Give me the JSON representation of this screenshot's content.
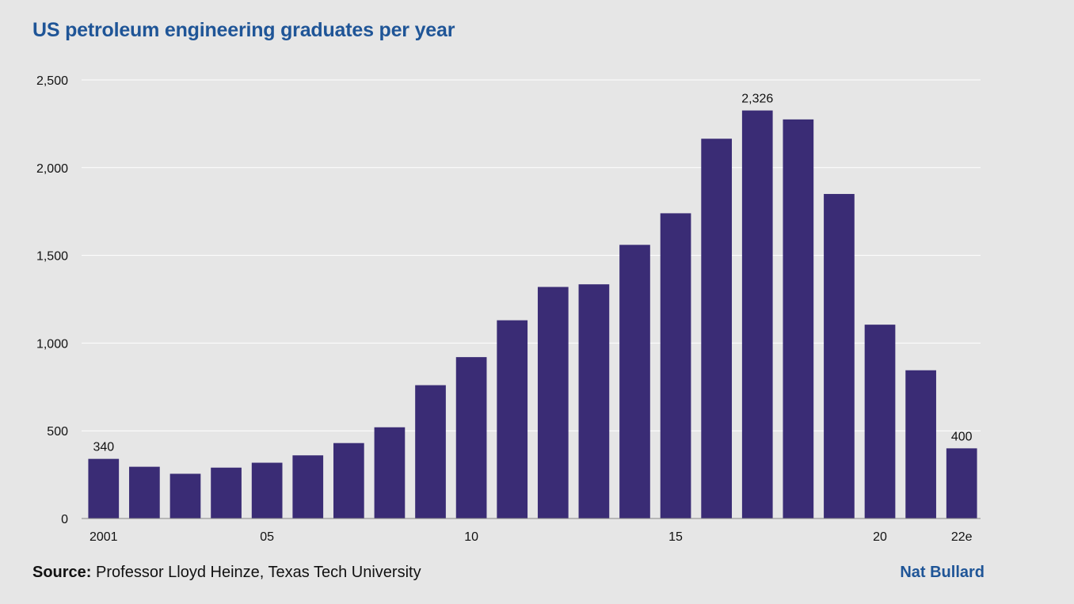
{
  "title": "US petroleum engineering graduates per year",
  "source_label": "Source:",
  "source_text": " Professor Lloyd Heinze, Texas Tech University",
  "author": "Nat Bullard",
  "colors": {
    "bar": "#3a2c75",
    "title": "#1f5597",
    "grid": "#ffffff",
    "axis": "#888888",
    "background": "#e6e6e6"
  },
  "chart_data": {
    "type": "bar",
    "title": "US petroleum engineering graduates per year",
    "xlabel": "",
    "ylabel": "",
    "ylim": [
      0,
      2500
    ],
    "yticks": [
      0,
      500,
      1000,
      1500,
      2000,
      2500
    ],
    "ytick_labels": [
      "0",
      "500",
      "1,000",
      "1,500",
      "2,000",
      "2,500"
    ],
    "categories": [
      "2001",
      "2002",
      "2003",
      "2004",
      "2005",
      "2006",
      "2007",
      "2008",
      "2009",
      "2010",
      "2011",
      "2012",
      "2013",
      "2014",
      "2015",
      "2016",
      "2017",
      "2018",
      "2019",
      "2020",
      "2021",
      "2022e"
    ],
    "xtick_labels": [
      "2001",
      "",
      "",
      "",
      "05",
      "",
      "",
      "",
      "",
      "10",
      "",
      "",
      "",
      "",
      "15",
      "",
      "",
      "",
      "",
      "20",
      "",
      "22e"
    ],
    "values": [
      340,
      295,
      255,
      290,
      318,
      360,
      430,
      520,
      760,
      920,
      1130,
      1320,
      1335,
      1560,
      1740,
      2165,
      2326,
      2275,
      1850,
      1105,
      845,
      400
    ],
    "data_labels": [
      "340",
      "",
      "",
      "",
      "",
      "",
      "",
      "",
      "",
      "",
      "",
      "",
      "",
      "",
      "",
      "",
      "2,326",
      "",
      "",
      "",
      "",
      "400"
    ],
    "grid": true
  }
}
